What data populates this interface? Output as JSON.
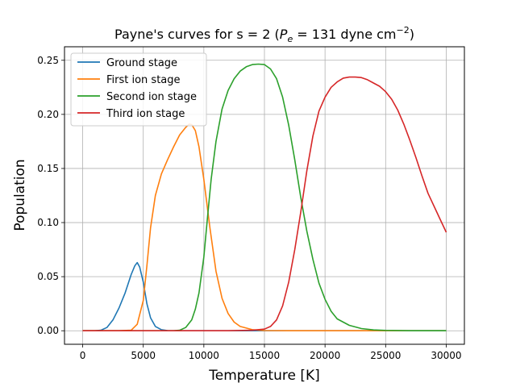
{
  "chart_data": {
    "type": "line",
    "title_parts": {
      "prefix": "Payne's curves for s = 2 (",
      "p": "P",
      "sub": "e",
      "mid": " = 131 dyne cm",
      "sup": "−2",
      "suffix": ")"
    },
    "xlabel": "Temperature [K]",
    "ylabel": "Population",
    "xlim": [
      -1500,
      31500
    ],
    "ylim": [
      -0.0125,
      0.2625
    ],
    "xticks": [
      0,
      5000,
      10000,
      15000,
      20000,
      25000,
      30000
    ],
    "xtick_labels": [
      "0",
      "5000",
      "10000",
      "15000",
      "20000",
      "25000",
      "30000"
    ],
    "yticks": [
      0.0,
      0.05,
      0.1,
      0.15,
      0.2,
      0.25
    ],
    "ytick_labels": [
      "0.00",
      "0.05",
      "0.10",
      "0.15",
      "0.20",
      "0.25"
    ],
    "grid": true,
    "legend_position": "top-left",
    "series": [
      {
        "name": "Ground stage",
        "color": "#1f77b4",
        "x": [
          0,
          1000,
          1500,
          2000,
          2500,
          3000,
          3500,
          4000,
          4300,
          4500,
          4700,
          5000,
          5300,
          5600,
          6000,
          6500,
          7000,
          8000,
          10000,
          15000,
          20000,
          25000,
          30000
        ],
        "y": [
          0.0,
          0.0,
          0.0005,
          0.003,
          0.01,
          0.021,
          0.035,
          0.052,
          0.06,
          0.063,
          0.059,
          0.045,
          0.025,
          0.012,
          0.004,
          0.001,
          0.0002,
          0.0,
          0.0,
          0.0,
          0.0,
          0.0,
          0.0
        ]
      },
      {
        "name": "First ion stage",
        "color": "#ff7f0e",
        "x": [
          0,
          3000,
          4000,
          4500,
          5000,
          5300,
          5600,
          6000,
          6500,
          7000,
          7500,
          8000,
          8500,
          8800,
          9000,
          9300,
          9600,
          10000,
          10500,
          11000,
          11500,
          12000,
          12500,
          13000,
          14000,
          15000,
          17000,
          20000,
          25000,
          30000
        ],
        "y": [
          0.0,
          0.0,
          0.0005,
          0.006,
          0.028,
          0.06,
          0.095,
          0.125,
          0.145,
          0.158,
          0.17,
          0.181,
          0.188,
          0.191,
          0.1905,
          0.185,
          0.17,
          0.14,
          0.095,
          0.055,
          0.03,
          0.016,
          0.008,
          0.004,
          0.001,
          0.0002,
          0.0,
          0.0,
          0.0,
          0.0
        ]
      },
      {
        "name": "Second ion stage",
        "color": "#2ca02c",
        "x": [
          0,
          6000,
          7500,
          8000,
          8500,
          9000,
          9300,
          9600,
          10000,
          10300,
          10600,
          11000,
          11500,
          12000,
          12500,
          13000,
          13500,
          14000,
          14500,
          15000,
          15500,
          16000,
          16500,
          17000,
          17500,
          18000,
          18500,
          19000,
          19500,
          20000,
          20500,
          21000,
          22000,
          23000,
          24000,
          25000,
          27000,
          30000
        ],
        "y": [
          0.0,
          0.0,
          0.0,
          0.0005,
          0.003,
          0.01,
          0.02,
          0.035,
          0.068,
          0.105,
          0.14,
          0.175,
          0.205,
          0.222,
          0.233,
          0.24,
          0.244,
          0.246,
          0.2465,
          0.246,
          0.242,
          0.233,
          0.216,
          0.19,
          0.158,
          0.123,
          0.092,
          0.066,
          0.044,
          0.029,
          0.018,
          0.011,
          0.005,
          0.002,
          0.0008,
          0.0003,
          0.0,
          0.0
        ]
      },
      {
        "name": "Third ion stage",
        "color": "#d62728",
        "x": [
          0,
          12000,
          14000,
          15000,
          15500,
          16000,
          16500,
          17000,
          17500,
          18000,
          18500,
          19000,
          19500,
          20000,
          20500,
          21000,
          21500,
          22000,
          22500,
          23000,
          23500,
          24000,
          24500,
          25000,
          25500,
          26000,
          26500,
          27000,
          27500,
          28000,
          28500,
          29000,
          29500,
          30000
        ],
        "y": [
          0.0,
          0.0,
          0.0005,
          0.0015,
          0.004,
          0.01,
          0.023,
          0.045,
          0.075,
          0.11,
          0.148,
          0.18,
          0.203,
          0.216,
          0.225,
          0.23,
          0.2335,
          0.2345,
          0.2345,
          0.234,
          0.232,
          0.229,
          0.226,
          0.221,
          0.214,
          0.204,
          0.191,
          0.176,
          0.16,
          0.143,
          0.127,
          0.115,
          0.103,
          0.091
        ]
      }
    ]
  }
}
